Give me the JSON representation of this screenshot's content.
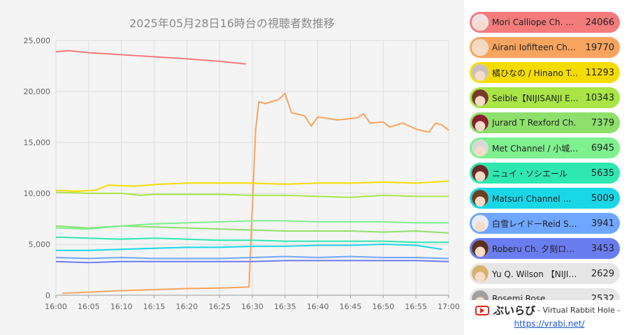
{
  "title": "2025年05月28日16時台の視聴者数推移",
  "chart_data": {
    "type": "line",
    "title": "2025年05月28日16時台の視聴者数推移",
    "x_ticks": [
      "16:00",
      "16:05",
      "16:10",
      "16:15",
      "16:20",
      "16:25",
      "16:30",
      "16:35",
      "16:40",
      "16:45",
      "16:50",
      "16:55",
      "17:00"
    ],
    "y_ticks": [
      "0",
      "5,000",
      "10,000",
      "15,000",
      "20,000",
      "25,000"
    ],
    "xlim": [
      0,
      60
    ],
    "ylim": [
      0,
      25000
    ],
    "grid": true,
    "series": [
      {
        "name": "Mori Calliope Ch. hololive-EN",
        "color": "#f47b7b",
        "points": [
          [
            0,
            23900
          ],
          [
            2,
            24000
          ],
          [
            5,
            23800
          ],
          [
            10,
            23600
          ],
          [
            15,
            23400
          ],
          [
            20,
            23200
          ],
          [
            25,
            22950
          ],
          [
            29,
            22700
          ]
        ]
      },
      {
        "name": "Airani Iofifteen Channel",
        "color": "#f7a45e",
        "points": [
          [
            1,
            200
          ],
          [
            5,
            300
          ],
          [
            10,
            450
          ],
          [
            15,
            550
          ],
          [
            20,
            650
          ],
          [
            25,
            700
          ],
          [
            29.5,
            800
          ],
          [
            30.5,
            16200
          ],
          [
            31,
            19000
          ],
          [
            32,
            18800
          ],
          [
            34,
            19200
          ],
          [
            35,
            19800
          ],
          [
            36,
            17900
          ],
          [
            38,
            17600
          ],
          [
            39,
            16600
          ],
          [
            40,
            17500
          ],
          [
            43,
            17200
          ],
          [
            46,
            17400
          ],
          [
            47,
            17800
          ],
          [
            48,
            16900
          ],
          [
            50,
            17000
          ],
          [
            51,
            16500
          ],
          [
            53,
            16900
          ],
          [
            55,
            16300
          ],
          [
            57,
            16000
          ],
          [
            58,
            16900
          ],
          [
            59,
            16700
          ],
          [
            60,
            16200
          ]
        ]
      },
      {
        "name": "橘ひなの / Hinano Tachibana",
        "color": "#f5dc00",
        "points": [
          [
            0,
            10300
          ],
          [
            3,
            10200
          ],
          [
            6,
            10300
          ],
          [
            8,
            10800
          ],
          [
            12,
            10700
          ],
          [
            16,
            10900
          ],
          [
            20,
            11000
          ],
          [
            25,
            11000
          ],
          [
            30,
            11000
          ],
          [
            35,
            10900
          ],
          [
            40,
            11000
          ],
          [
            45,
            11000
          ],
          [
            50,
            11100
          ],
          [
            55,
            11000
          ],
          [
            60,
            11200
          ]
        ]
      },
      {
        "name": "Seible【NIJISANJI EN】",
        "color": "#a8e545",
        "points": [
          [
            0,
            10100
          ],
          [
            5,
            10000
          ],
          [
            10,
            10000
          ],
          [
            13,
            9800
          ],
          [
            15,
            9900
          ],
          [
            20,
            9900
          ],
          [
            25,
            9900
          ],
          [
            30,
            9800
          ],
          [
            35,
            9800
          ],
          [
            40,
            9700
          ],
          [
            45,
            9600
          ],
          [
            50,
            9800
          ],
          [
            55,
            9700
          ],
          [
            60,
            9700
          ]
        ]
      },
      {
        "name": "Jurard T Rexford Ch.",
        "color": "#8ee06c",
        "points": [
          [
            0,
            6800
          ],
          [
            5,
            6600
          ],
          [
            10,
            6800
          ],
          [
            15,
            6700
          ],
          [
            20,
            6600
          ],
          [
            25,
            6500
          ],
          [
            30,
            6400
          ],
          [
            35,
            6300
          ],
          [
            40,
            6300
          ],
          [
            45,
            6300
          ],
          [
            50,
            6200
          ],
          [
            55,
            6300
          ],
          [
            60,
            6100
          ]
        ]
      },
      {
        "name": "Met Channel / 小城夜みるく",
        "color": "#7ef08e",
        "points": [
          [
            0,
            6600
          ],
          [
            5,
            6500
          ],
          [
            10,
            6800
          ],
          [
            15,
            7000
          ],
          [
            20,
            7100
          ],
          [
            25,
            7200
          ],
          [
            30,
            7300
          ],
          [
            35,
            7300
          ],
          [
            40,
            7200
          ],
          [
            45,
            7200
          ],
          [
            50,
            7200
          ],
          [
            55,
            7100
          ],
          [
            60,
            7100
          ]
        ]
      },
      {
        "name": "ニュイ・ソシエール",
        "color": "#2ee8b0",
        "points": [
          [
            0,
            5700
          ],
          [
            5,
            5600
          ],
          [
            10,
            5500
          ],
          [
            15,
            5600
          ],
          [
            20,
            5500
          ],
          [
            25,
            5400
          ],
          [
            30,
            5400
          ],
          [
            35,
            5300
          ],
          [
            40,
            5300
          ],
          [
            45,
            5300
          ],
          [
            50,
            5300
          ],
          [
            55,
            5200
          ],
          [
            60,
            5200
          ]
        ]
      },
      {
        "name": "Matsuri Channel 夏色まつり",
        "color": "#1ad7e8",
        "points": [
          [
            0,
            4400
          ],
          [
            5,
            4400
          ],
          [
            10,
            4500
          ],
          [
            15,
            4600
          ],
          [
            20,
            4700
          ],
          [
            25,
            4700
          ],
          [
            30,
            4800
          ],
          [
            35,
            4800
          ],
          [
            40,
            4900
          ],
          [
            45,
            4900
          ],
          [
            50,
            5000
          ],
          [
            55,
            4900
          ],
          [
            59,
            4500
          ]
        ]
      },
      {
        "name": "白雪レイドーReid Shirayuki",
        "color": "#6fa6ff",
        "points": [
          [
            0,
            3700
          ],
          [
            5,
            3600
          ],
          [
            10,
            3700
          ],
          [
            15,
            3600
          ],
          [
            20,
            3600
          ],
          [
            25,
            3600
          ],
          [
            30,
            3700
          ],
          [
            35,
            3800
          ],
          [
            40,
            3700
          ],
          [
            45,
            3800
          ],
          [
            50,
            3700
          ],
          [
            55,
            3700
          ],
          [
            60,
            3600
          ]
        ]
      },
      {
        "name": "Roberu Ch. 夕刻ロベル",
        "color": "#6a7df0",
        "points": [
          [
            0,
            3300
          ],
          [
            5,
            3200
          ],
          [
            10,
            3300
          ],
          [
            15,
            3300
          ],
          [
            20,
            3300
          ],
          [
            25,
            3300
          ],
          [
            30,
            3300
          ],
          [
            35,
            3400
          ],
          [
            40,
            3400
          ],
          [
            45,
            3400
          ],
          [
            50,
            3400
          ],
          [
            55,
            3400
          ],
          [
            60,
            3300
          ]
        ]
      }
    ]
  },
  "legend": [
    {
      "name": "Mori Calliope Ch. hololive-EN",
      "value": "24066",
      "color": "#f47b7b",
      "hair": "#efe2e6"
    },
    {
      "name": "Airani Iofifteen Channel",
      "value": "19770",
      "color": "#f7a45e",
      "hair": "#f2d9c4"
    },
    {
      "name": "橘ひなの / Hinano Tachibana",
      "value": "11293",
      "color": "#f5dc00",
      "hair": "#c8c0c0"
    },
    {
      "name": "Seible【NIJISANJI EN】",
      "value": "10343",
      "color": "#a8e545",
      "hair": "#7a3a2a"
    },
    {
      "name": "Jurard T Rexford Ch.",
      "value": "7379",
      "color": "#8ee06c",
      "hair": "#8a2030"
    },
    {
      "name": "Met Channel / 小城夜みるく",
      "value": "6945",
      "color": "#7ef08e",
      "hair": "#d8d8d8"
    },
    {
      "name": "ニュイ・ソシエール",
      "value": "5635",
      "color": "#2ee8b0",
      "hair": "#6a2a2a"
    },
    {
      "name": "Matsuri Channel 夏色まつり",
      "value": "5009",
      "color": "#1ad7e8",
      "hair": "#6a4020"
    },
    {
      "name": "白雪レイドーReid Shirayuki",
      "value": "3941",
      "color": "#6fa6ff",
      "hair": "#e8ecf6"
    },
    {
      "name": "Roberu Ch. 夕刻ロベル",
      "value": "3453",
      "color": "#6a7df0",
      "hair": "#5a3020"
    },
    {
      "name": "Yu Q. Wilson 【NIJISANJI EN】",
      "value": "2629",
      "color": "#e6e6e6",
      "hair": "#d9b070"
    },
    {
      "name": "Rosemi Rose",
      "value": "2532",
      "color": "#e6e6e6",
      "hair": "#a0a0a0"
    }
  ],
  "footer": {
    "brand_name": "ぶいらび",
    "brand_tagline": "- Virtual Rabbit Hole -",
    "link": "https://vrabi.net/"
  }
}
